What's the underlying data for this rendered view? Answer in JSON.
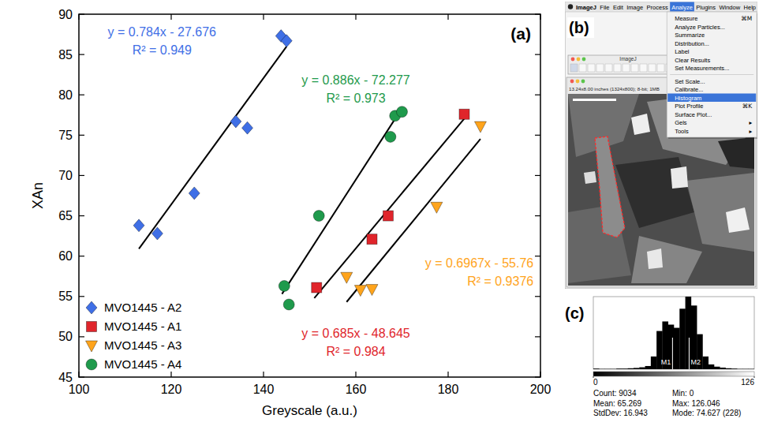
{
  "chart_data": [
    {
      "type": "scatter",
      "panel_label": "(a)",
      "x_label": "Greyscale (a.u.)",
      "y_label": "XAn",
      "xlim": [
        100,
        200
      ],
      "xticks": [
        100,
        120,
        140,
        160,
        180,
        200
      ],
      "ylim": [
        45,
        90
      ],
      "yticks": [
        45,
        50,
        55,
        60,
        65,
        70,
        75,
        80,
        85,
        90
      ],
      "legend": "lower left",
      "series": [
        {
          "name": "MVO1445 - A2",
          "color": "#3f6fe6",
          "marker": "diamond",
          "x": [
            113,
            117,
            125,
            134,
            136.5,
            143.8,
            145
          ],
          "values": [
            63.8,
            62.8,
            67.8,
            76.7,
            75.9,
            87.3,
            86.7
          ],
          "fit": {
            "slope": 0.784,
            "intercept": -27.676,
            "x_start": 113,
            "x_end": 145
          },
          "equation": "y = 0.784x - 27.676",
          "r2_label": "R² = 0.949"
        },
        {
          "name": "MVO1445 - A1",
          "color": "#e0252b",
          "marker": "square",
          "x": [
            151.5,
            163.5,
            167,
            183.5
          ],
          "values": [
            56.1,
            62.1,
            65,
            77.6
          ],
          "fit": {
            "slope": 0.685,
            "intercept": -48.645,
            "x_start": 151,
            "x_end": 183.5
          },
          "equation": "y = 0.685x - 48.645",
          "r2_label": "R² = 0.984"
        },
        {
          "name": "MVO1445 - A3",
          "color": "#ffa41c",
          "marker": "triangle_down",
          "x": [
            158,
            161,
            163.5,
            177.5,
            187
          ],
          "values": [
            57.4,
            55.8,
            55.9,
            66.1,
            76.1
          ],
          "fit": {
            "slope": 0.6967,
            "intercept": -55.76,
            "x_start": 158,
            "x_end": 187
          },
          "equation": "y = 0.6967x - 55.76",
          "r2_label": "R² = 0.9376"
        },
        {
          "name": "MVO1445 - A4",
          "color": "#1f9a4c",
          "marker": "circle",
          "x": [
            144.5,
            145.5,
            152,
            167.5,
            168.5,
            170
          ],
          "values": [
            56.3,
            54,
            65,
            74.8,
            77.4,
            77.9
          ],
          "fit": {
            "slope": 0.886,
            "intercept": -72.277,
            "x_start": 144,
            "x_end": 170
          },
          "equation": "y = 0.886x - 72.277",
          "r2_label": "R² = 0.973"
        }
      ]
    },
    {
      "type": "histogram",
      "panel_label": "(c)",
      "color": "#000000",
      "bins": [
        0,
        4.5,
        9,
        13.5,
        18,
        22.5,
        27,
        31.5,
        36,
        40.5,
        45,
        49.5,
        54,
        58.5,
        63,
        67.5,
        72,
        76.5,
        81,
        85.5,
        90,
        94.5,
        99,
        103.5,
        108,
        112.5,
        117,
        121.5,
        126
      ],
      "values": [
        2,
        1,
        1,
        1,
        2,
        2,
        3,
        4,
        6,
        10,
        40,
        120,
        150,
        140,
        130,
        190,
        228,
        200,
        110,
        40,
        15,
        8,
        5,
        3,
        2,
        1,
        1,
        1
      ],
      "xlim": [
        0,
        126
      ],
      "xticks": [
        0,
        126
      ],
      "ylim": [
        0,
        228
      ],
      "tick_labels": "x",
      "annotations": [
        {
          "text": "M1",
          "x": 62
        },
        {
          "text": "M2",
          "x": 75
        }
      ],
      "stats": [
        [
          "Count: 9034",
          "Min: 0"
        ],
        [
          "Mean: 65.269",
          "Max: 126.046"
        ],
        [
          "StdDev: 16.943",
          "Mode: 74.627 (228)"
        ]
      ]
    }
  ],
  "screenshot": {
    "panel_label": "(b)",
    "menu_bar": [
      "ImageJ",
      "File",
      "Edit",
      "Image",
      "Process",
      "Analyze",
      "Plugins",
      "Window",
      "Help"
    ],
    "open_menu": "Analyze",
    "menu_groups": [
      [
        {
          "label": "Measure",
          "shortcut": "⌘M"
        },
        {
          "label": "Analyze Particles..."
        },
        {
          "label": "Summarize"
        },
        {
          "label": "Distribution..."
        },
        {
          "label": "Label"
        },
        {
          "label": "Clear Results"
        },
        {
          "label": "Set Measurements..."
        }
      ],
      [
        {
          "label": "Set Scale..."
        },
        {
          "label": "Calibrate..."
        },
        {
          "label": "Histogram"
        },
        {
          "label": "Plot Profile",
          "shortcut": "⌘K"
        },
        {
          "label": "Surface Plot..."
        },
        {
          "label": "Gels",
          "shortcut": "▸"
        },
        {
          "label": "Tools",
          "shortcut": "▸"
        }
      ]
    ],
    "highlighted": "Histogram",
    "window_title": "ImageJ",
    "image_info": "13.24x8.00 inches (1324x800); 8-bit; 1MB"
  }
}
